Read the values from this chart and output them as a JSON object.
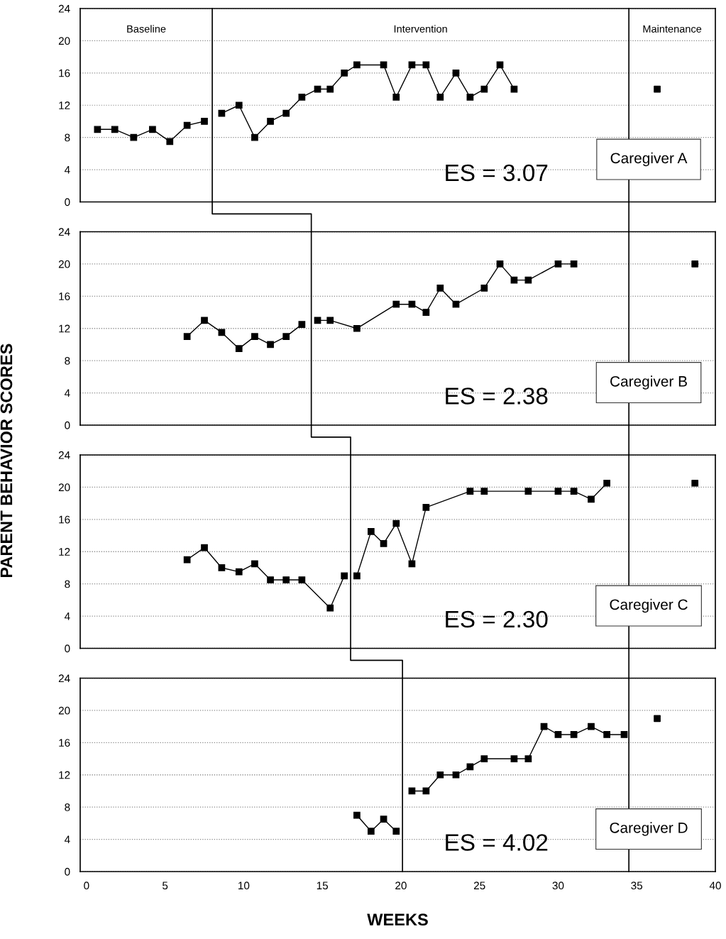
{
  "chart_data": [
    {
      "type": "line",
      "xlim": [
        -0.4,
        40
      ],
      "xticks": [
        0,
        5,
        10,
        15,
        20,
        25,
        30,
        35,
        40
      ],
      "ylim": [
        0,
        24
      ],
      "yticks": [
        0,
        4,
        8,
        12,
        16,
        20,
        24
      ],
      "grid": "y",
      "tick_labels": "y",
      "marker": "square",
      "line_style": "solid",
      "series": [
        {
          "color": "#000000",
          "x": [
            0.7,
            1.8,
            3.0,
            4.2,
            5.3,
            6.4,
            7.5
          ],
          "values": [
            9,
            9,
            8,
            9,
            7.5,
            9.5,
            10
          ]
        },
        {
          "color": "#000000",
          "x": [
            8.6,
            9.7,
            10.7,
            11.7,
            12.7,
            13.7,
            14.7,
            15.5,
            16.4,
            17.2,
            18.9,
            19.7,
            20.7,
            21.6,
            22.5,
            23.5,
            24.4,
            25.3,
            26.3,
            27.2
          ],
          "values": [
            11,
            12,
            8,
            10,
            11,
            13,
            14,
            14,
            16,
            17,
            17,
            13,
            17,
            17,
            13,
            16,
            13,
            14,
            17,
            14
          ]
        },
        {
          "type": "scatter",
          "color": "#000000",
          "x": [
            36.3
          ],
          "values": [
            14
          ]
        }
      ],
      "ref_lines": [
        {
          "axis": "x",
          "value": 8.0,
          "color": "#000000"
        },
        {
          "axis": "x",
          "value": 34.5,
          "color": "#000000"
        }
      ],
      "annotations": [
        "Baseline",
        "Intervention",
        "Maintenance",
        "ES = 3.07",
        "Caregiver A"
      ]
    },
    {
      "type": "line",
      "xlim": [
        -0.4,
        40
      ],
      "xticks": [
        0,
        5,
        10,
        15,
        20,
        25,
        30,
        35,
        40
      ],
      "ylim": [
        0,
        24
      ],
      "yticks": [
        0,
        4,
        8,
        12,
        16,
        20,
        24
      ],
      "grid": "y",
      "tick_labels": "y",
      "marker": "square",
      "line_style": "solid",
      "series": [
        {
          "color": "#000000",
          "x": [
            6.4,
            7.5,
            8.6,
            9.7,
            10.7,
            11.7,
            12.7,
            13.7
          ],
          "values": [
            11,
            13,
            11.5,
            9.5,
            11,
            10,
            11,
            12.5
          ]
        },
        {
          "color": "#000000",
          "x": [
            14.7,
            15.5,
            17.2,
            19.7,
            20.7,
            21.6,
            22.5,
            23.5,
            25.3,
            26.3,
            27.2,
            28.1,
            30.0,
            31.0
          ],
          "values": [
            13,
            13,
            12,
            15,
            15,
            14,
            17,
            15,
            17,
            20,
            18,
            18,
            20,
            20
          ]
        },
        {
          "type": "scatter",
          "color": "#000000",
          "x": [
            38.7
          ],
          "values": [
            20
          ]
        }
      ],
      "ref_lines": [
        {
          "axis": "x",
          "value": 14.3,
          "color": "#000000"
        },
        {
          "axis": "x",
          "value": 34.5,
          "color": "#000000"
        }
      ],
      "annotations": [
        "ES = 2.38",
        "Caregiver B"
      ]
    },
    {
      "type": "line",
      "ylabel": "PARENT BEHAVIOR SCORES",
      "xlim": [
        -0.4,
        40
      ],
      "xticks": [
        0,
        5,
        10,
        15,
        20,
        25,
        30,
        35,
        40
      ],
      "ylim": [
        0,
        24
      ],
      "yticks": [
        0,
        4,
        8,
        12,
        16,
        20,
        24
      ],
      "grid": "y",
      "tick_labels": "y",
      "marker": "square",
      "line_style": "solid",
      "series": [
        {
          "color": "#000000",
          "x": [
            6.4,
            7.5,
            8.6,
            9.7,
            10.7,
            11.7,
            12.7,
            13.7,
            15.5,
            16.4
          ],
          "values": [
            11,
            12.5,
            10,
            9.5,
            10.5,
            8.5,
            8.5,
            8.5,
            5,
            9
          ]
        },
        {
          "color": "#000000",
          "x": [
            17.2,
            18.1,
            18.9,
            19.7,
            20.7,
            21.6,
            24.4,
            25.3,
            28.1,
            30.0,
            31.0,
            32.1,
            33.1
          ],
          "values": [
            9,
            14.5,
            13,
            15.5,
            10.5,
            17.5,
            19.5,
            19.5,
            19.5,
            19.5,
            19.5,
            18.5,
            20.5
          ]
        },
        {
          "type": "scatter",
          "color": "#000000",
          "x": [
            38.7
          ],
          "values": [
            20.5
          ]
        }
      ],
      "ref_lines": [
        {
          "axis": "x",
          "value": 16.8,
          "color": "#000000"
        },
        {
          "axis": "x",
          "value": 34.5,
          "color": "#000000"
        }
      ],
      "annotations": [
        "ES = 2.30",
        "Caregiver C"
      ]
    },
    {
      "type": "line",
      "xlabel": "WEEKS",
      "xlim": [
        -0.4,
        40
      ],
      "xticks": [
        0,
        5,
        10,
        15,
        20,
        25,
        30,
        35,
        40
      ],
      "ylim": [
        0,
        24
      ],
      "yticks": [
        0,
        4,
        8,
        12,
        16,
        20,
        24
      ],
      "grid": "y",
      "marker": "square",
      "line_style": "solid",
      "series": [
        {
          "color": "#000000",
          "x": [
            17.2,
            18.1,
            18.9,
            19.7
          ],
          "values": [
            7,
            5,
            6.5,
            5
          ]
        },
        {
          "color": "#000000",
          "x": [
            20.7,
            21.6,
            22.5,
            23.5,
            24.4,
            25.3,
            27.2,
            28.1,
            29.1,
            30.0,
            31.0,
            32.1,
            33.1,
            34.2
          ],
          "values": [
            10,
            10,
            12,
            12,
            13,
            14,
            14,
            14,
            18,
            17,
            17,
            18,
            17,
            17
          ]
        },
        {
          "type": "scatter",
          "color": "#000000",
          "x": [
            36.3
          ],
          "values": [
            19
          ]
        }
      ],
      "ref_lines": [
        {
          "axis": "x",
          "value": 20.1,
          "color": "#000000"
        },
        {
          "axis": "x",
          "value": 34.5,
          "color": "#000000"
        }
      ],
      "annotations": [
        "ES = 4.02",
        "Caregiver D"
      ]
    }
  ]
}
